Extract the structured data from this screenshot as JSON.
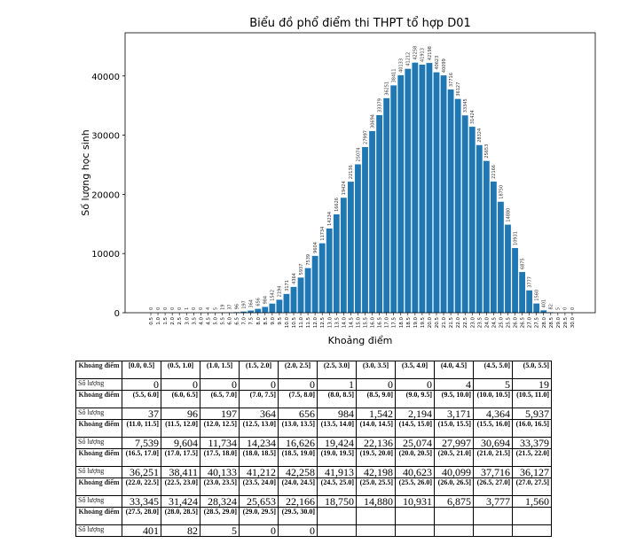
{
  "chart_data": {
    "type": "bar",
    "title": "Biểu đồ phổ điểm thi THPT tổ hợp D01",
    "xlabel": "Khoảng điểm",
    "ylabel": "Số lượng học sinh",
    "categories": [
      "0.5",
      "1.0",
      "1.5",
      "2.0",
      "2.5",
      "3.0",
      "3.5",
      "4.0",
      "4.5",
      "5.0",
      "5.5",
      "6.0",
      "6.5",
      "7.0",
      "7.5",
      "8.0",
      "8.5",
      "9.0",
      "9.5",
      "10.0",
      "10.5",
      "11.0",
      "11.5",
      "12.0",
      "12.5",
      "13.0",
      "13.5",
      "14.0",
      "14.5",
      "15.0",
      "15.5",
      "16.0",
      "16.5",
      "17.0",
      "17.5",
      "18.0",
      "18.5",
      "19.0",
      "19.5",
      "20.0",
      "20.5",
      "21.0",
      "21.5",
      "22.0",
      "22.5",
      "23.0",
      "23.5",
      "24.0",
      "24.5",
      "25.0",
      "25.5",
      "26.0",
      "26.5",
      "27.0",
      "27.5",
      "28.0",
      "28.5",
      "29.0",
      "29.5",
      "30.0"
    ],
    "values": [
      0,
      0,
      0,
      0,
      0,
      1,
      0,
      0,
      4,
      5,
      19,
      37,
      96,
      197,
      364,
      656,
      984,
      1542,
      2194,
      3171,
      4364,
      5937,
      7539,
      9604,
      11734,
      14234,
      16626,
      19424,
      22136,
      25074,
      27997,
      30694,
      33379,
      36251,
      38411,
      40133,
      41212,
      42258,
      41913,
      42198,
      40623,
      40099,
      37716,
      36127,
      33345,
      31424,
      28324,
      25653,
      22166,
      18750,
      14880,
      10931,
      6875,
      3777,
      1560,
      401,
      82,
      5,
      0,
      0
    ],
    "yticks": [
      0,
      10000,
      20000,
      30000,
      40000
    ],
    "ylim": [
      0,
      47300
    ],
    "bar_color": "#1f77b4",
    "grid": false
  },
  "table": {
    "row_label_interval": "Khoảng điểm",
    "row_label_count": "Số lượng",
    "intervals": [
      "[0.0, 0.5]",
      "(0.5, 1.0]",
      "(1.0, 1.5]",
      "(1.5, 2.0]",
      "(2.0, 2.5]",
      "(2.5, 3.0]",
      "(3.0, 3.5]",
      "(3.5, 4.0]",
      "(4.0, 4.5]",
      "(4.5, 5.0]",
      "(5.0, 5.5]",
      "(5.5, 6.0]",
      "(6.0, 6.5]",
      "(6.5, 7.0]",
      "(7.0, 7.5]",
      "(7.5, 8.0]",
      "(8.0, 8.5]",
      "(8.5, 9.0]",
      "(9.0, 9.5]",
      "(9.5, 10.0]",
      "(10.0, 10.5]",
      "(10.5, 11.0]",
      "(11.0, 11.5]",
      "(11.5, 12.0]",
      "(12.0, 12.5]",
      "(12.5, 13.0]",
      "(13.0, 13.5]",
      "(13.5, 14.0]",
      "(14.0, 14.5]",
      "(14.5, 15.0]",
      "(15.0, 15.5]",
      "(15.5, 16.0]",
      "(16.0, 16.5]",
      "(16.5, 17.0]",
      "(17.0, 17.5]",
      "(17.5, 18.0]",
      "(18.0, 18.5]",
      "(18.5, 19.0]",
      "(19.0, 19.5]",
      "(19.5, 20.0]",
      "(20.0, 20.5]",
      "(20.5, 21.0]",
      "(21.0, 21.5]",
      "(21.5, 22.0]",
      "(22.0, 22.5]",
      "(22.5, 23.0]",
      "(23.0, 23.5]",
      "(23.5, 24.0]",
      "(24.0, 24.5]",
      "(24.5, 25.0]",
      "(25.0, 25.5]",
      "(25.5, 26.0]",
      "(26.0, 26.5]",
      "(26.5, 27.0]",
      "(27.0, 27.5]",
      "(27.5, 28.0]",
      "(28.0, 28.5]",
      "(28.5, 29.0]",
      "(29.0, 29.5]",
      "(29.5, 30.0]"
    ],
    "counts": [
      "0",
      "0",
      "0",
      "0",
      "0",
      "1",
      "0",
      "0",
      "4",
      "5",
      "19",
      "37",
      "96",
      "197",
      "364",
      "656",
      "984",
      "1,542",
      "2,194",
      "3,171",
      "4,364",
      "5,937",
      "7,539",
      "9,604",
      "11,734",
      "14,234",
      "16,626",
      "19,424",
      "22,136",
      "25,074",
      "27,997",
      "30,694",
      "33,379",
      "36,251",
      "38,411",
      "40,133",
      "41,212",
      "42,258",
      "41,913",
      "42,198",
      "40,623",
      "40,099",
      "37,716",
      "36,127",
      "33,345",
      "31,424",
      "28,324",
      "25,653",
      "22,166",
      "18,750",
      "14,880",
      "10,931",
      "6,875",
      "3,777",
      "1,560",
      "401",
      "82",
      "5",
      "0",
      "0"
    ]
  }
}
